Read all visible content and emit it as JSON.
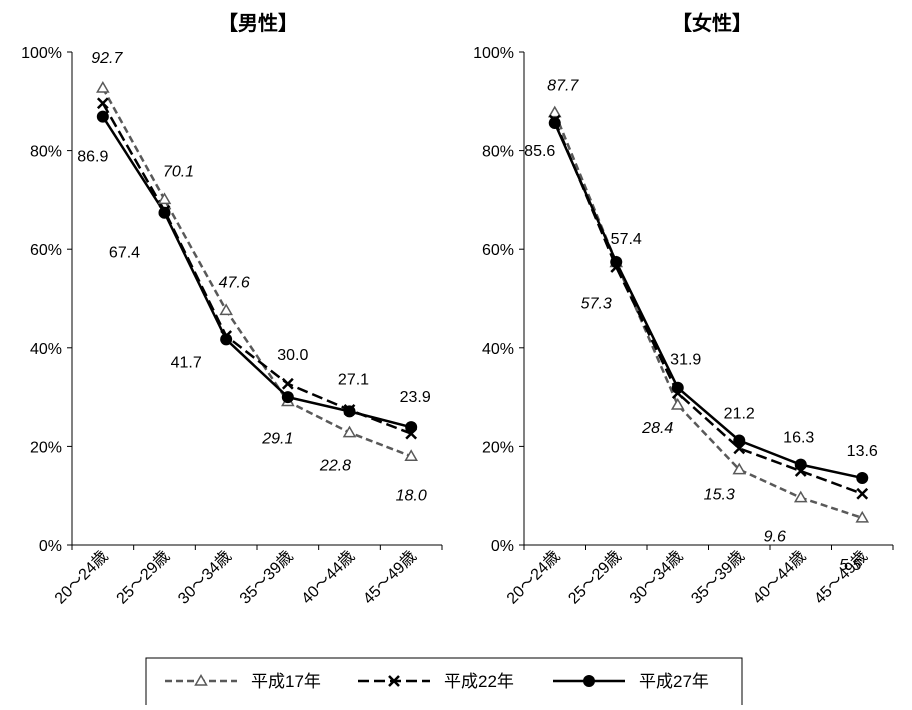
{
  "chart_data": [
    {
      "type": "line",
      "title": "【男性】",
      "categories": [
        "20～24歳",
        "25～29歳",
        "30～34歳",
        "35～39歳",
        "40～44歳",
        "45～49歳"
      ],
      "ylim": [
        0,
        100
      ],
      "yticks": [
        "0%",
        "20%",
        "40%",
        "60%",
        "80%",
        "100%"
      ],
      "series": [
        {
          "name": "平成17年",
          "values": [
            92.7,
            70.1,
            47.6,
            29.1,
            22.8,
            18.0
          ],
          "labels": [
            "92.7",
            "70.1",
            "47.6",
            "29.1",
            "22.8",
            "18.0"
          ]
        },
        {
          "name": "平成22年",
          "values": [
            89.6,
            67.8,
            42.4,
            32.7,
            27.4,
            22.6
          ],
          "labels": []
        },
        {
          "name": "平成27年",
          "values": [
            86.9,
            67.4,
            41.7,
            30.0,
            27.1,
            23.9
          ],
          "labels": [
            "86.9",
            "67.4",
            "41.7",
            "30.0",
            "27.1",
            "23.9"
          ]
        }
      ]
    },
    {
      "type": "line",
      "title": "【女性】",
      "categories": [
        "20～24歳",
        "25～29歳",
        "30～34歳",
        "35～39歳",
        "40～44歳",
        "45～49歳"
      ],
      "ylim": [
        0,
        100
      ],
      "yticks": [
        "0%",
        "20%",
        "40%",
        "60%",
        "80%",
        "100%"
      ],
      "series": [
        {
          "name": "平成17年",
          "values": [
            87.7,
            57.3,
            28.4,
            15.3,
            9.6,
            5.5
          ],
          "labels": [
            "87.7",
            "57.3",
            "28.4",
            "15.3",
            "9.6",
            "5.5"
          ]
        },
        {
          "name": "平成22年",
          "values": [
            86.1,
            56.4,
            30.8,
            19.6,
            15.0,
            10.4
          ],
          "labels": []
        },
        {
          "name": "平成27年",
          "values": [
            85.6,
            57.4,
            31.9,
            21.2,
            16.3,
            13.6
          ],
          "labels": [
            "85.6",
            "57.4",
            "31.9",
            "21.2",
            "16.3",
            "13.6"
          ]
        }
      ]
    }
  ],
  "legend": [
    {
      "name": "平成17年",
      "style": "dashed-gray-triangle"
    },
    {
      "name": "平成22年",
      "style": "dashed-black-x"
    },
    {
      "name": "平成27年",
      "style": "solid-black-circle"
    }
  ],
  "colors": {
    "series17": "#595959",
    "series22": "#000000",
    "series27": "#000000",
    "axis": "#000000"
  }
}
